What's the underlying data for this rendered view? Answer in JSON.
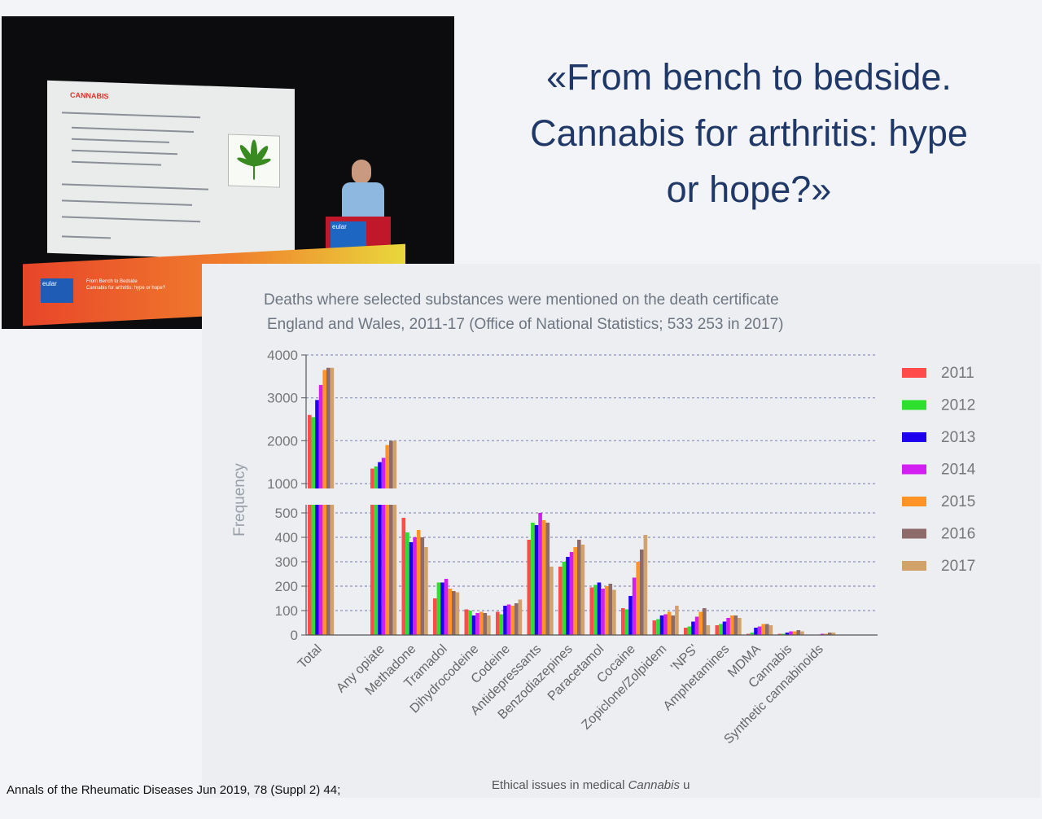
{
  "talk_title": {
    "line1": "«From bench to bedside.",
    "line2": "Cannabis for arthritis: hype",
    "line3": "or hope?»"
  },
  "photo": {
    "slide_heading": "CANNABIS",
    "eular_logo": "eular",
    "podium_logo": "eular",
    "banner_line1": "From Bench to Bedside",
    "banner_line2": "Cannabis for arthritis: hype or hope?"
  },
  "chart_data": {
    "type": "bar",
    "title": "Deaths where selected substances were mentioned on the death certificate",
    "subtitle": "England and Wales, 2011-17 (Office of National Statistics; 533 253 in 2017)",
    "ylabel": "Frequency",
    "xlabel": "",
    "scale": "broken axis: linear 0-500 below break, 1000-4000 above break",
    "yticks_lower": [
      "0",
      "100",
      "200",
      "300",
      "400",
      "500"
    ],
    "yticks_upper": [
      "1000",
      "2000",
      "3000",
      "4000"
    ],
    "grid": true,
    "legend_position": "right",
    "categories": [
      "Total",
      "",
      "Any opiate",
      "Methadone",
      "Tramadol",
      "Dihydrocodeine",
      "Codeine",
      "Antidepressants",
      "Benzodiazepines",
      "Paracetamol",
      "Cocaine",
      "Zopiclone/Zolpidem",
      "'NPS'",
      "Amphetamines",
      "MDMA",
      "Cannabis",
      "Synthetic cannabinoids"
    ],
    "series": [
      {
        "name": "2011",
        "color": "#ff4b4b",
        "values": [
          2600,
          null,
          1350,
          480,
          150,
          105,
          95,
          390,
          280,
          195,
          110,
          60,
          30,
          40,
          5,
          5,
          0
        ]
      },
      {
        "name": "2012",
        "color": "#2ee02e",
        "values": [
          2550,
          null,
          1400,
          420,
          215,
          100,
          85,
          460,
          300,
          205,
          105,
          65,
          35,
          45,
          10,
          5,
          0
        ]
      },
      {
        "name": "2013",
        "color": "#1f00ee",
        "values": [
          2950,
          null,
          1500,
          380,
          215,
          80,
          120,
          450,
          320,
          215,
          160,
          80,
          55,
          55,
          30,
          10,
          0
        ]
      },
      {
        "name": "2014",
        "color": "#d21ef0",
        "values": [
          3300,
          null,
          1600,
          400,
          230,
          90,
          125,
          500,
          340,
          190,
          235,
          85,
          75,
          70,
          35,
          15,
          5
        ]
      },
      {
        "name": "2015",
        "color": "#ff9326",
        "values": [
          3650,
          null,
          1900,
          430,
          190,
          95,
          120,
          470,
          360,
          200,
          300,
          95,
          95,
          80,
          45,
          15,
          5
        ]
      },
      {
        "name": "2016",
        "color": "#8e6b6b",
        "values": [
          3700,
          null,
          2000,
          400,
          180,
          90,
          130,
          460,
          390,
          210,
          350,
          80,
          110,
          80,
          45,
          20,
          10
        ]
      },
      {
        "name": "2017",
        "color": "#d2a26b",
        "values": [
          3700,
          null,
          2000,
          360,
          175,
          80,
          145,
          280,
          370,
          185,
          410,
          120,
          40,
          70,
          40,
          15,
          10
        ]
      }
    ]
  },
  "citation": "Annals of the Rheumatic Diseases Jun 2019, 78 (Suppl 2) 44;",
  "footer": {
    "prefix": "Ethical issues in medical ",
    "italic": "Cannabis",
    "suffix": " u"
  }
}
